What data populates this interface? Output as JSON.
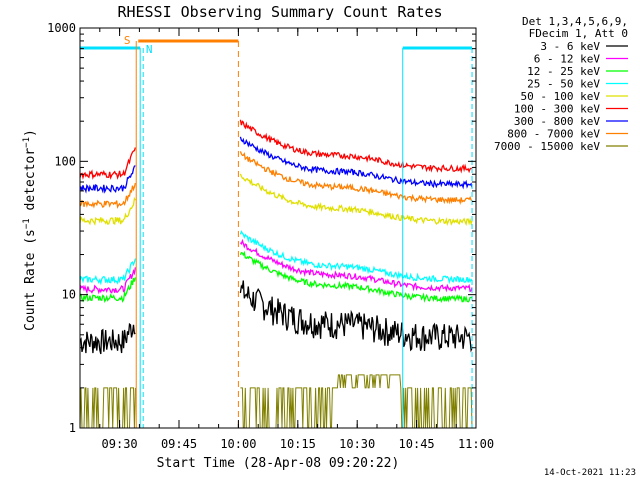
{
  "chart_data": {
    "type": "line",
    "title": "RHESSI Observing Summary Count Rates",
    "xlabel": "Start Time (28-Apr-08 09:20:22)",
    "ylabel": "Count Rate (s⁻¹ detector⁻¹)",
    "ylabel_main": "Count Rate (s",
    "ylabel_sup1": "−1",
    "ylabel_mid": " detector",
    "ylabel_sup2": "−1",
    "ylabel_end": ")",
    "y_scale": "log",
    "ylim": [
      1,
      1000
    ],
    "xlim_minutes_after_0920": [
      0,
      100
    ],
    "x_ticks": [
      {
        "label": "09:30",
        "min": 10
      },
      {
        "label": "09:45",
        "min": 25
      },
      {
        "label": "10:00",
        "min": 40
      },
      {
        "label": "10:15",
        "min": 55
      },
      {
        "label": "10:30",
        "min": 70
      },
      {
        "label": "10:45",
        "min": 85
      },
      {
        "label": "11:00",
        "min": 100
      }
    ],
    "y_ticks": [
      {
        "label": "1",
        "v": 1
      },
      {
        "label": "10",
        "v": 10
      },
      {
        "label": "100",
        "v": 100
      },
      {
        "label": "1000",
        "v": 1000
      }
    ],
    "legend_header": [
      "Det 1,3,4,5,6,9,",
      "FDecim 1, Att 0"
    ],
    "legend_position": "right",
    "series": [
      {
        "name": "3 - 6 keV",
        "color": "#000000",
        "pre": 4.5,
        "post": 5.2
      },
      {
        "name": "6 - 12 keV",
        "color": "#ff00ff",
        "pre": 11,
        "post": 12
      },
      {
        "name": "12 - 25 keV",
        "color": "#00ff00",
        "pre": 9.5,
        "post": 10
      },
      {
        "name": "25 - 50 keV",
        "color": "#00ffff",
        "pre": 13,
        "post": 14
      },
      {
        "name": "50 - 100 keV",
        "color": "#e0e000",
        "pre": 36,
        "post": 38
      },
      {
        "name": "100 - 300 keV",
        "color": "#ff0000",
        "pre": 80,
        "post": 95
      },
      {
        "name": "300 - 800 keV",
        "color": "#0000ff",
        "pre": 63,
        "post": 72
      },
      {
        "name": "800 - 7000 keV",
        "color": "#ff8000",
        "pre": 48,
        "post": 55
      },
      {
        "name": "7000 - 15000 keV",
        "color": "#808000",
        "pre": 1.6,
        "post": 1.8
      }
    ],
    "annotations": {
      "S_label": "S",
      "N_label": "N",
      "night_intervals": [
        [
          0,
          15.2
        ],
        [
          81.5,
          99
        ]
      ],
      "saa_interval": [
        14.2,
        40
      ]
    },
    "timestamp": "14-Oct-2021 11:23"
  }
}
